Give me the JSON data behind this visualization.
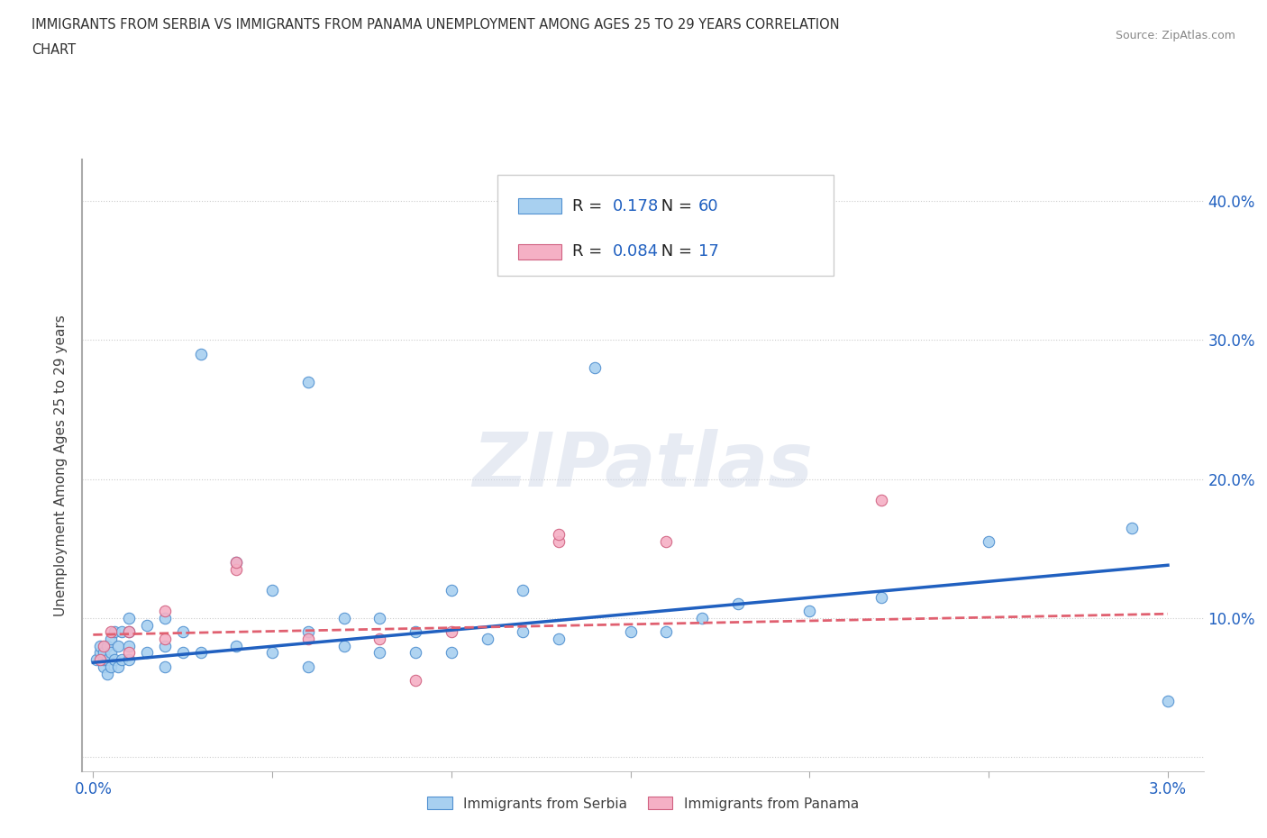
{
  "title_line1": "IMMIGRANTS FROM SERBIA VS IMMIGRANTS FROM PANAMA UNEMPLOYMENT AMONG AGES 25 TO 29 YEARS CORRELATION",
  "title_line2": "CHART",
  "source": "Source: ZipAtlas.com",
  "ylabel": "Unemployment Among Ages 25 to 29 years",
  "xlim": [
    -0.0003,
    0.031
  ],
  "ylim": [
    -0.01,
    0.43
  ],
  "xtick_positions": [
    0.0,
    0.005,
    0.01,
    0.015,
    0.02,
    0.025,
    0.03
  ],
  "xtick_labels": [
    "0.0%",
    "",
    "",
    "",
    "",
    "",
    "3.0%"
  ],
  "ytick_positions": [
    0.0,
    0.1,
    0.2,
    0.3,
    0.4
  ],
  "ytick_labels": [
    "",
    "10.0%",
    "20.0%",
    "30.0%",
    "40.0%"
  ],
  "serbia_color": "#a8d0f0",
  "serbia_edge_color": "#5090d0",
  "panama_color": "#f5b0c5",
  "panama_edge_color": "#d06080",
  "serbia_line_color": "#2060c0",
  "panama_line_color": "#e06070",
  "watermark_text": "ZIPatlas",
  "R_serbia": "0.178",
  "N_serbia": "60",
  "R_panama": "0.084",
  "N_panama": "17",
  "serbia_scatter_x": [
    0.0001,
    0.0002,
    0.0002,
    0.0003,
    0.0003,
    0.0003,
    0.0004,
    0.0004,
    0.0004,
    0.0005,
    0.0005,
    0.0005,
    0.0006,
    0.0006,
    0.0007,
    0.0007,
    0.0008,
    0.0008,
    0.001,
    0.001,
    0.001,
    0.001,
    0.0015,
    0.0015,
    0.002,
    0.002,
    0.002,
    0.0025,
    0.0025,
    0.003,
    0.003,
    0.004,
    0.004,
    0.005,
    0.005,
    0.006,
    0.006,
    0.006,
    0.007,
    0.007,
    0.008,
    0.008,
    0.009,
    0.009,
    0.01,
    0.01,
    0.011,
    0.012,
    0.012,
    0.013,
    0.014,
    0.015,
    0.016,
    0.017,
    0.018,
    0.02,
    0.022,
    0.025,
    0.029,
    0.03
  ],
  "serbia_scatter_y": [
    0.07,
    0.075,
    0.08,
    0.065,
    0.07,
    0.075,
    0.06,
    0.07,
    0.08,
    0.065,
    0.075,
    0.085,
    0.07,
    0.09,
    0.065,
    0.08,
    0.07,
    0.09,
    0.07,
    0.08,
    0.09,
    0.1,
    0.075,
    0.095,
    0.065,
    0.08,
    0.1,
    0.075,
    0.09,
    0.075,
    0.29,
    0.08,
    0.14,
    0.075,
    0.12,
    0.065,
    0.09,
    0.27,
    0.08,
    0.1,
    0.075,
    0.1,
    0.075,
    0.09,
    0.075,
    0.12,
    0.085,
    0.09,
    0.12,
    0.085,
    0.28,
    0.09,
    0.09,
    0.1,
    0.11,
    0.105,
    0.115,
    0.155,
    0.165,
    0.04
  ],
  "panama_scatter_x": [
    0.0002,
    0.0003,
    0.0005,
    0.001,
    0.001,
    0.002,
    0.002,
    0.004,
    0.004,
    0.006,
    0.008,
    0.009,
    0.01,
    0.013,
    0.013,
    0.016,
    0.022
  ],
  "panama_scatter_y": [
    0.07,
    0.08,
    0.09,
    0.075,
    0.09,
    0.085,
    0.105,
    0.135,
    0.14,
    0.085,
    0.085,
    0.055,
    0.09,
    0.155,
    0.16,
    0.155,
    0.185
  ],
  "serbia_trend_x": [
    0.0,
    0.03
  ],
  "serbia_trend_y": [
    0.068,
    0.138
  ],
  "panama_trend_x": [
    0.0,
    0.03
  ],
  "panama_trend_y": [
    0.088,
    0.103
  ],
  "bg_color": "#ffffff",
  "grid_color": "#cccccc",
  "title_color": "#303030",
  "label_color": "#404040",
  "tick_color": "#2060c0",
  "source_color": "#888888"
}
